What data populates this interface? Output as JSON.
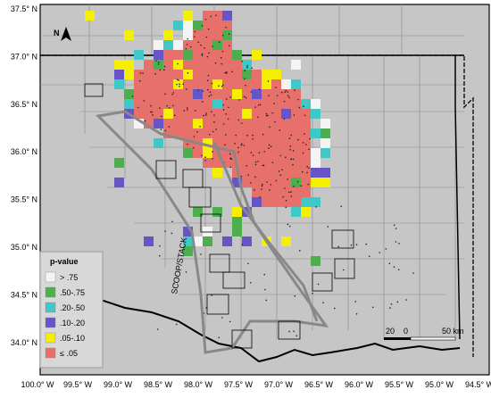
{
  "map": {
    "latitude_labels": [
      "37.5° N",
      "37.0° N",
      "36.5° N",
      "36.0° N",
      "35.5° N",
      "35.0° N",
      "34.5° N",
      "34.0° N"
    ],
    "longitude_labels": [
      "100.0° W",
      "99.5° W",
      "99.0° W",
      "98.5° W",
      "98.0° W",
      "97.5° W",
      "97.0° W",
      "96.5° W",
      "96.0° W",
      "95.5° W",
      "95.0° W",
      "94.5° W"
    ],
    "north_label": "N",
    "region_label": "SCOOP/STACK",
    "legend": {
      "title": "p-value",
      "items": [
        {
          "label": "> .75",
          "color": "#f4f4f4"
        },
        {
          "label": ".50-.75",
          "color": "#4cae4c"
        },
        {
          "label": ".20-.50",
          "color": "#40c8c8"
        },
        {
          "label": ".10-.20",
          "color": "#6655c8"
        },
        {
          "label": ".05-.10",
          "color": "#f4f000"
        },
        {
          "label": "≤ .05",
          "color": "#e8706a"
        }
      ]
    },
    "scale_bar": {
      "labels": [
        "20",
        "0",
        "50 km"
      ]
    }
  }
}
